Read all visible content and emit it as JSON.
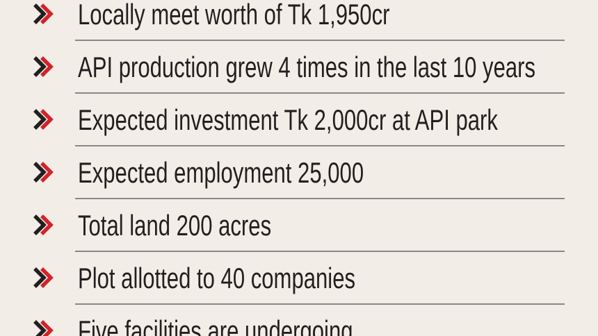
{
  "items": [
    "Locally meet worth of Tk 1,950cr",
    "API production grew 4 times in the last 10 years",
    "Expected investment Tk 2,000cr at API park",
    "Expected employment 25,000",
    "Total land 200 acres",
    "Plot allotted to 40 companies",
    "Five facilities are undergoing"
  ]
}
